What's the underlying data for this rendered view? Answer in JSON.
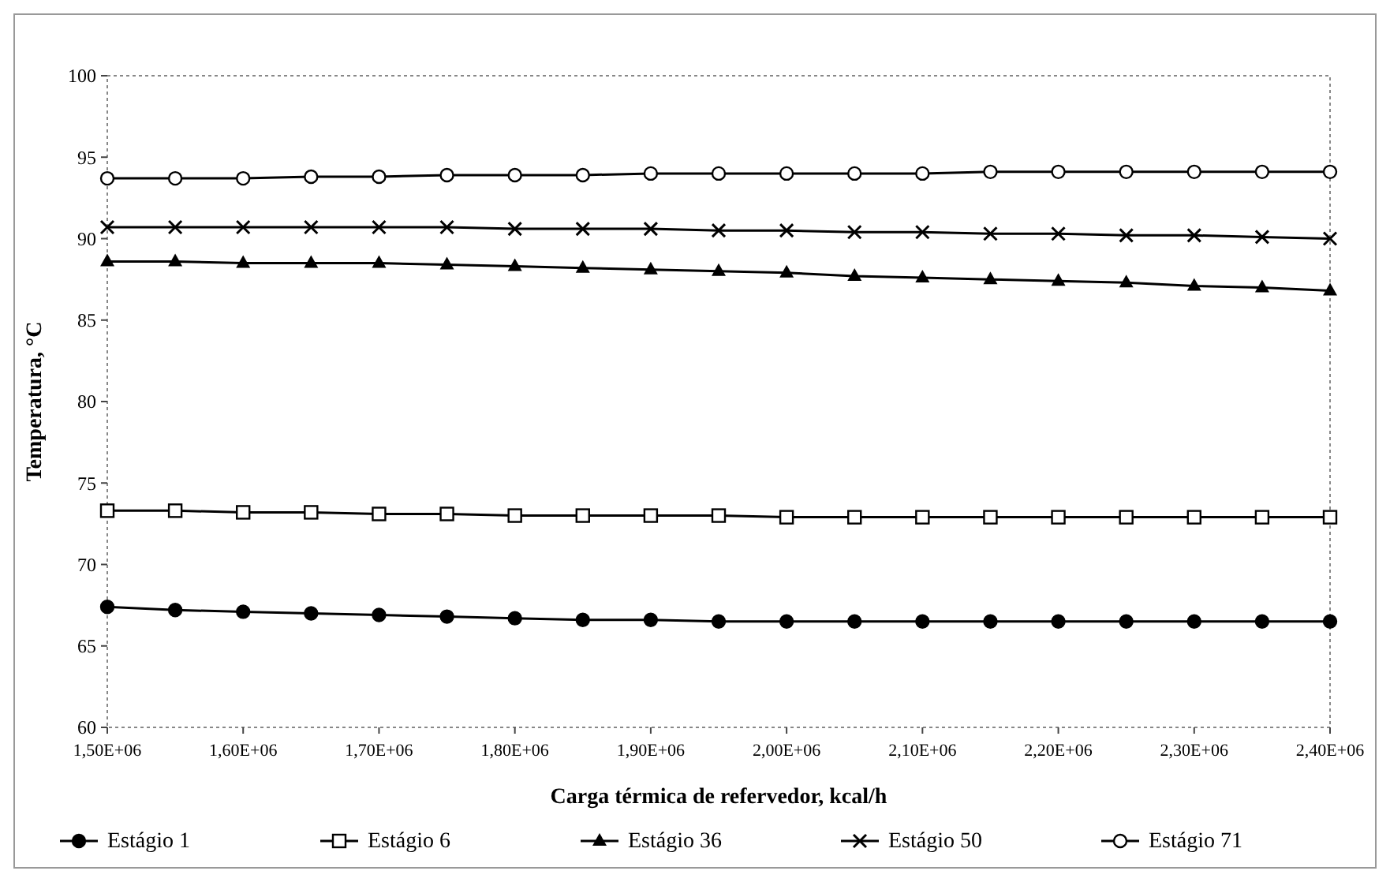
{
  "chart_data": {
    "type": "line",
    "xlabel": "Carga térmica de refervedor, kcal/h",
    "ylabel": "Temperatura, °C",
    "categories": [
      "1,50E+06",
      null,
      "1,60E+06",
      null,
      "1,70E+06",
      null,
      "1,80E+06",
      null,
      "1,90E+06",
      null,
      "2,00E+06",
      null,
      "2,10E+06",
      null,
      "2,20E+06",
      null,
      "2,30E+06",
      null,
      "2,40E+06"
    ],
    "ylim": [
      60,
      100
    ],
    "yticks": [
      60,
      65,
      70,
      75,
      80,
      85,
      90,
      95,
      100
    ],
    "series": [
      {
        "name": "Estágio 1",
        "color": "#000000",
        "marker": "circle",
        "values": [
          67.4,
          67.2,
          67.1,
          67.0,
          66.9,
          66.8,
          66.7,
          66.6,
          66.6,
          66.5,
          66.5,
          66.5,
          66.5,
          66.5,
          66.5,
          66.5,
          66.5,
          66.5,
          66.5
        ]
      },
      {
        "name": "Estágio 6",
        "color": "#000000",
        "marker": "square",
        "values": [
          73.3,
          73.3,
          73.2,
          73.2,
          73.1,
          73.1,
          73.0,
          73.0,
          73.0,
          73.0,
          72.9,
          72.9,
          72.9,
          72.9,
          72.9,
          72.9,
          72.9,
          72.9,
          72.9
        ]
      },
      {
        "name": "Estágio 36",
        "color": "#000000",
        "marker": "triangle",
        "values": [
          88.6,
          88.6,
          88.5,
          88.5,
          88.5,
          88.4,
          88.3,
          88.2,
          88.1,
          88.0,
          87.9,
          87.7,
          87.6,
          87.5,
          87.4,
          87.3,
          87.1,
          87.0,
          86.8
        ]
      },
      {
        "name": "Estágio 50",
        "color": "#000000",
        "marker": "cross",
        "values": [
          90.7,
          90.7,
          90.7,
          90.7,
          90.7,
          90.7,
          90.6,
          90.6,
          90.6,
          90.5,
          90.5,
          90.4,
          90.4,
          90.3,
          90.3,
          90.2,
          90.2,
          90.1,
          90.0
        ]
      },
      {
        "name": "Estágio 71",
        "color": "#000000",
        "marker": "circle",
        "values": [
          93.7,
          93.7,
          93.7,
          93.8,
          93.8,
          93.9,
          93.9,
          93.9,
          94.0,
          94.0,
          94.0,
          94.0,
          94.0,
          94.1,
          94.1,
          94.1,
          94.1,
          94.1,
          94.1
        ]
      }
    ],
    "grid": false,
    "legend": "bottom",
    "line_style": "solid"
  }
}
